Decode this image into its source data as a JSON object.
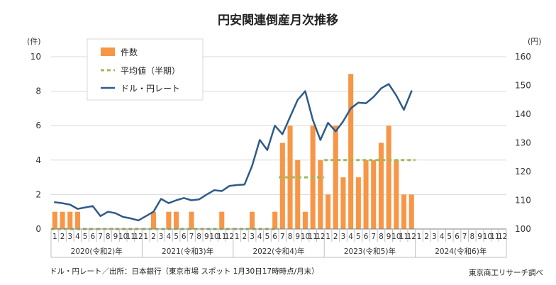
{
  "chart_data": {
    "type": "bar+line",
    "title": "円安関連倒産月次推移",
    "y_left_unit": "(件)",
    "y_right_unit": "(円)",
    "ylim_left": [
      0,
      10
    ],
    "yticks_left": [
      0,
      2,
      4,
      6,
      8,
      10
    ],
    "ylim_right": [
      100,
      160
    ],
    "yticks_right": [
      100,
      110,
      120,
      130,
      140,
      150,
      160
    ],
    "month_ticks": [
      "1",
      "2",
      "3",
      "4",
      "5",
      "6",
      "7",
      "8",
      "9",
      "10",
      "11",
      "12"
    ],
    "years": [
      {
        "label": "2020(令和2)年"
      },
      {
        "label": "2021(令和3)年"
      },
      {
        "label": "2022(令和4)年"
      },
      {
        "label": "2023(令和5)年"
      },
      {
        "label": "2024(令和6)年"
      }
    ],
    "legend": [
      "件数",
      "平均値（半期）",
      "ドル・円レート"
    ],
    "series": [
      {
        "name": "件数",
        "type": "bar",
        "color": "#f79646",
        "values": [
          1,
          1,
          1,
          1,
          0,
          0,
          0,
          0,
          0,
          0,
          0,
          0,
          0,
          1,
          0,
          1,
          1,
          0,
          1,
          0,
          0,
          0,
          1,
          0,
          0,
          0,
          1,
          0,
          0,
          1,
          5,
          6,
          4,
          1,
          6,
          4,
          2,
          6,
          3,
          9,
          3,
          4,
          4,
          5,
          6,
          4,
          2,
          2
        ]
      },
      {
        "name": "平均値（半期）",
        "type": "step",
        "color": "#9bbb59",
        "segments": [
          {
            "start": 0,
            "end": 6,
            "value": 0
          },
          {
            "start": 6,
            "end": 12,
            "value": 0
          },
          {
            "start": 12,
            "end": 18,
            "value": 0
          },
          {
            "start": 18,
            "end": 24,
            "value": 0
          },
          {
            "start": 24,
            "end": 30,
            "value": 0
          },
          {
            "start": 30,
            "end": 36,
            "value": 3
          },
          {
            "start": 36,
            "end": 48,
            "value": 4
          }
        ]
      },
      {
        "name": "ドル・円レート",
        "type": "line",
        "color": "#2f5b8a",
        "values": [
          109.3,
          109.0,
          108.5,
          107.0,
          107.5,
          108.0,
          104.5,
          106.0,
          105.5,
          104.2,
          103.7,
          103.0,
          104.5,
          106.0,
          110.5,
          109.0,
          110.0,
          110.8,
          110.0,
          110.3,
          112.0,
          113.5,
          113.2,
          115.0,
          115.3,
          115.5,
          122.0,
          131.0,
          127.5,
          136.0,
          133.0,
          139.0,
          145.0,
          148.0,
          138.0,
          131.0,
          137.0,
          134.0,
          137.5,
          142.0,
          144.0,
          143.8,
          146.0,
          149.0,
          150.5,
          146.5,
          141.5,
          148.0
        ]
      }
    ],
    "footer_left": "ドル・円レート／出所：日本銀行（東京市場 スポット 1月30日17時時点/月末）",
    "footer_right": "東京商工リサーチ調べ"
  }
}
